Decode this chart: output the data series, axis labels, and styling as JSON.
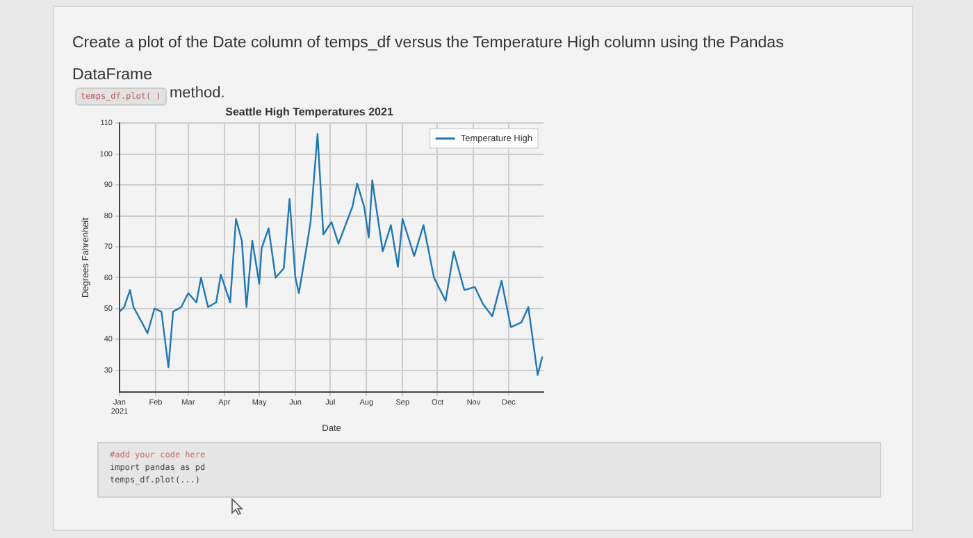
{
  "chart_data": {
    "type": "line",
    "title": "Seattle High Temperatures 2021",
    "xlabel": "Date",
    "ylabel": "Degrees Fahrenheit",
    "annotations": [
      "Create a plot of the Date column of temps_df versus the Temperature High column using the Pandas DataFrame",
      "temps_df.plot( )",
      "method.",
      "#add your code here",
      "import pandas as pd",
      "temps_df.plot(...)"
    ],
    "x": [
      "2021-01-01",
      "2021-01-05",
      "2021-01-10",
      "2021-01-13",
      "2021-01-21",
      "2021-01-25",
      "2021-01-31",
      "2021-02-06",
      "2021-02-12",
      "2021-02-16",
      "2021-02-23",
      "2021-03-01",
      "2021-03-08",
      "2021-03-12",
      "2021-03-18",
      "2021-03-25",
      "2021-03-29",
      "2021-04-06",
      "2021-04-11",
      "2021-04-16",
      "2021-04-20",
      "2021-04-25",
      "2021-05-01",
      "2021-05-03",
      "2021-05-09",
      "2021-05-15",
      "2021-05-22",
      "2021-05-27",
      "2021-06-01",
      "2021-06-04",
      "2021-06-10",
      "2021-06-14",
      "2021-06-20",
      "2021-06-25",
      "2021-07-02",
      "2021-07-08",
      "2021-07-20",
      "2021-07-24",
      "2021-07-30",
      "2021-08-03",
      "2021-08-06",
      "2021-08-15",
      "2021-08-22",
      "2021-08-28",
      "2021-09-01",
      "2021-09-11",
      "2021-09-19",
      "2021-09-28",
      "2021-10-08",
      "2021-10-15",
      "2021-10-24",
      "2021-11-02",
      "2021-11-09",
      "2021-11-17",
      "2021-11-25",
      "2021-12-03",
      "2021-12-12",
      "2021-12-18",
      "2021-12-26",
      "2021-12-30"
    ],
    "series": [
      {
        "name": "Temperature High",
        "color": "#1f77b4",
        "values": [
          49,
          50.5,
          56,
          50.5,
          45,
          42,
          50,
          49,
          31,
          49,
          50.5,
          55,
          52,
          60,
          50.5,
          52,
          61,
          52,
          79,
          72,
          50.5,
          72,
          58,
          69.5,
          76,
          60,
          63,
          85.5,
          60,
          55,
          68.5,
          78,
          106.5,
          74,
          78,
          71,
          83,
          90.5,
          83,
          73,
          91.5,
          68.5,
          77,
          63.5,
          79,
          67,
          77,
          60,
          52.5,
          68.5,
          56,
          57,
          51.5,
          47.5,
          59,
          44,
          45.5,
          50.5,
          28.5,
          34.5
        ]
      }
    ],
    "xlim": [
      "2021-01-01",
      "2021-12-31"
    ],
    "xticks": [
      {
        "value": "2021-01-01",
        "label": "Jan\n2021"
      },
      {
        "value": "2021-02-01",
        "label": "Feb"
      },
      {
        "value": "2021-03-01",
        "label": "Mar"
      },
      {
        "value": "2021-04-01",
        "label": "Apr"
      },
      {
        "value": "2021-05-01",
        "label": "May"
      },
      {
        "value": "2021-06-01",
        "label": "Jun"
      },
      {
        "value": "2021-07-01",
        "label": "Jul"
      },
      {
        "value": "2021-08-01",
        "label": "Aug"
      },
      {
        "value": "2021-09-01",
        "label": "Sep"
      },
      {
        "value": "2021-10-01",
        "label": "Oct"
      },
      {
        "value": "2021-11-01",
        "label": "Nov"
      },
      {
        "value": "2021-12-01",
        "label": "Dec"
      }
    ],
    "ylim": [
      23,
      110
    ],
    "yticks": [
      30,
      40,
      50,
      60,
      70,
      80,
      90,
      100,
      110
    ],
    "grid": true,
    "legend": "top right",
    "marker": "none",
    "line_style": "solid"
  }
}
